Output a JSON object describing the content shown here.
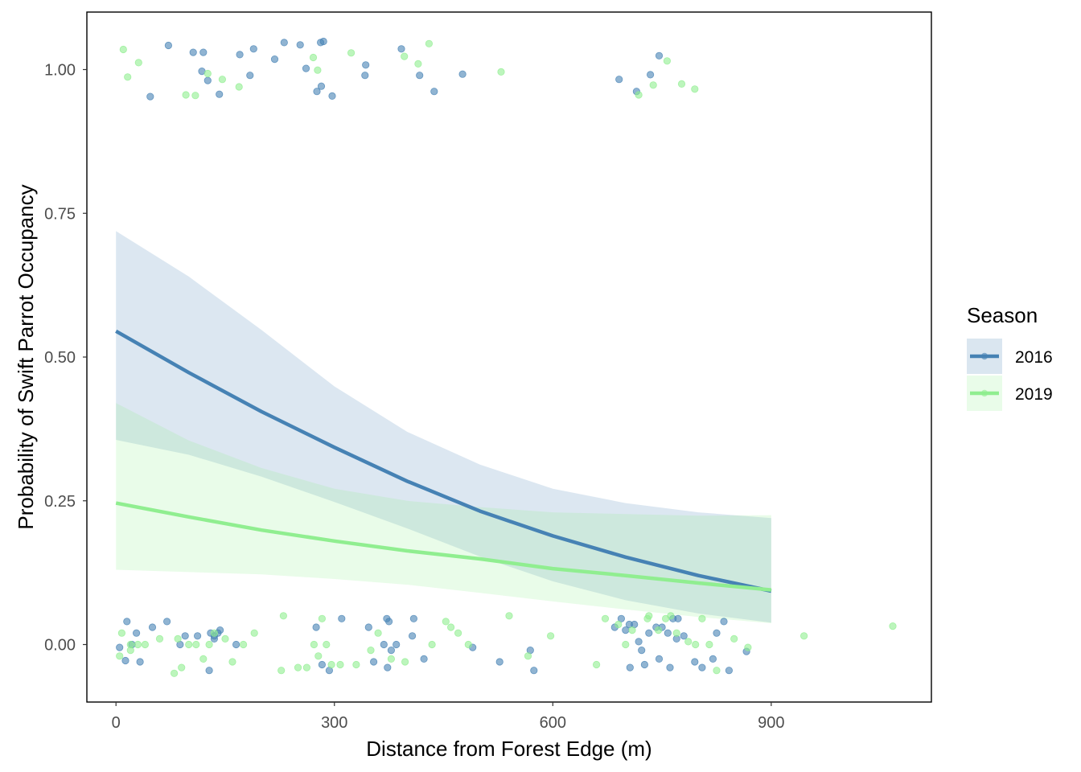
{
  "chart_data": {
    "type": "scatter",
    "xlabel": "Distance from Forest Edge (m)",
    "ylabel": "Probability of Swift Parrot Occupancy",
    "xlim": [
      -40,
      1120
    ],
    "ylim": [
      -0.1,
      1.1
    ],
    "x_ticks": [
      0,
      300,
      600,
      900
    ],
    "x_tick_labels": [
      "0",
      "300",
      "600",
      "900"
    ],
    "y_ticks": [
      0,
      0.25,
      0.5,
      0.75,
      1
    ],
    "y_tick_labels": [
      "0.00",
      "0.25",
      "0.50",
      "0.75",
      "1.00"
    ],
    "grid": false,
    "legend": {
      "title": "Season",
      "position": "right"
    },
    "series": [
      {
        "name": "2016",
        "color": "#4682b4",
        "fit": {
          "x": [
            0,
            100,
            200,
            300,
            400,
            500,
            600,
            700,
            800,
            900
          ],
          "y": [
            0.545,
            0.473,
            0.405,
            0.343,
            0.284,
            0.232,
            0.189,
            0.152,
            0.12,
            0.093
          ],
          "lower": [
            0.356,
            0.33,
            0.292,
            0.248,
            0.202,
            0.153,
            0.11,
            0.077,
            0.054,
            0.038
          ],
          "upper": [
            0.719,
            0.64,
            0.547,
            0.449,
            0.37,
            0.313,
            0.271,
            0.246,
            0.23,
            0.22
          ]
        },
        "points": [
          [
            72,
            1.042
          ],
          [
            106,
            1.03
          ],
          [
            120,
            1.03
          ],
          [
            170,
            1.026
          ],
          [
            189,
            1.036
          ],
          [
            218,
            1.018
          ],
          [
            231,
            1.047
          ],
          [
            253,
            1.043
          ],
          [
            281,
            1.047
          ],
          [
            285,
            1.049
          ],
          [
            343,
            1.008
          ],
          [
            392,
            1.036
          ],
          [
            47,
            0.953
          ],
          [
            118,
            0.997
          ],
          [
            126,
            0.981
          ],
          [
            142,
            0.957
          ],
          [
            184,
            0.99
          ],
          [
            261,
            1.002
          ],
          [
            276,
            0.962
          ],
          [
            282,
            0.971
          ],
          [
            297,
            0.954
          ],
          [
            342,
            0.99
          ],
          [
            417,
            0.99
          ],
          [
            437,
            0.962
          ],
          [
            476,
            0.992
          ],
          [
            691,
            0.983
          ],
          [
            715,
            0.962
          ],
          [
            734,
            0.991
          ],
          [
            746,
            1.024
          ],
          [
            15,
            0.04
          ],
          [
            28,
            0.02
          ],
          [
            22,
            0.0
          ],
          [
            5,
            -0.005
          ],
          [
            13,
            -0.028
          ],
          [
            33,
            -0.03
          ],
          [
            50,
            0.03
          ],
          [
            70,
            0.04
          ],
          [
            88,
            0.0
          ],
          [
            95,
            0.015
          ],
          [
            112,
            0.015
          ],
          [
            135,
            0.01
          ],
          [
            140,
            0.02
          ],
          [
            143,
            0.025
          ],
          [
            135,
            0.015
          ],
          [
            130,
            0.02
          ],
          [
            128,
            -0.045
          ],
          [
            165,
            0.0
          ],
          [
            275,
            0.03
          ],
          [
            310,
            0.045
          ],
          [
            283,
            -0.035
          ],
          [
            293,
            -0.045
          ],
          [
            347,
            0.03
          ],
          [
            368,
            0.0
          ],
          [
            378,
            -0.01
          ],
          [
            385,
            0.0
          ],
          [
            372,
            0.045
          ],
          [
            375,
            0.04
          ],
          [
            409,
            0.045
          ],
          [
            407,
            0.015
          ],
          [
            423,
            -0.025
          ],
          [
            490,
            -0.005
          ],
          [
            527,
            -0.03
          ],
          [
            569,
            -0.01
          ],
          [
            574,
            -0.045
          ],
          [
            354,
            -0.03
          ],
          [
            373,
            -0.04
          ],
          [
            685,
            0.03
          ],
          [
            694,
            0.045
          ],
          [
            700,
            0.025
          ],
          [
            705,
            0.035
          ],
          [
            712,
            0.035
          ],
          [
            718,
            0.005
          ],
          [
            722,
            -0.01
          ],
          [
            732,
            0.02
          ],
          [
            742,
            0.03
          ],
          [
            750,
            0.03
          ],
          [
            758,
            0.02
          ],
          [
            765,
            0.045
          ],
          [
            770,
            0.01
          ],
          [
            780,
            0.015
          ],
          [
            795,
            -0.03
          ],
          [
            805,
            -0.04
          ],
          [
            820,
            -0.025
          ],
          [
            825,
            0.02
          ],
          [
            835,
            0.04
          ],
          [
            842,
            -0.045
          ],
          [
            866,
            -0.012
          ],
          [
            772,
            0.045
          ],
          [
            746,
            -0.025
          ],
          [
            726,
            -0.035
          ],
          [
            761,
            -0.04
          ],
          [
            706,
            -0.04
          ]
        ]
      },
      {
        "name": "2019",
        "color": "#90ee90",
        "fit": {
          "x": [
            0,
            100,
            200,
            300,
            400,
            500,
            600,
            700,
            800,
            900
          ],
          "y": [
            0.246,
            0.222,
            0.199,
            0.18,
            0.163,
            0.149,
            0.132,
            0.12,
            0.107,
            0.095
          ],
          "lower": [
            0.13,
            0.126,
            0.122,
            0.114,
            0.104,
            0.09,
            0.075,
            0.061,
            0.048,
            0.037
          ],
          "upper": [
            0.42,
            0.355,
            0.307,
            0.271,
            0.25,
            0.239,
            0.23,
            0.227,
            0.224,
            0.225
          ]
        },
        "points": [
          [
            10,
            1.035
          ],
          [
            31,
            1.012
          ],
          [
            16,
            0.987
          ],
          [
            96,
            0.956
          ],
          [
            109,
            0.955
          ],
          [
            126,
            0.993
          ],
          [
            146,
            0.983
          ],
          [
            169,
            0.97
          ],
          [
            271,
            1.021
          ],
          [
            277,
            0.999
          ],
          [
            323,
            1.029
          ],
          [
            396,
            1.023
          ],
          [
            415,
            1.01
          ],
          [
            430,
            1.045
          ],
          [
            529,
            0.996
          ],
          [
            718,
            0.956
          ],
          [
            738,
            0.973
          ],
          [
            757,
            1.015
          ],
          [
            777,
            0.975
          ],
          [
            795,
            0.966
          ],
          [
            5,
            -0.02
          ],
          [
            8,
            0.02
          ],
          [
            20,
            -0.01
          ],
          [
            20,
            0.0
          ],
          [
            30,
            0.0
          ],
          [
            40,
            0.0
          ],
          [
            60,
            0.01
          ],
          [
            80,
            -0.05
          ],
          [
            85,
            0.01
          ],
          [
            90,
            -0.04
          ],
          [
            100,
            0.0
          ],
          [
            110,
            0.0
          ],
          [
            120,
            -0.025
          ],
          [
            128,
            0.0
          ],
          [
            135,
            0.02
          ],
          [
            150,
            0.01
          ],
          [
            160,
            -0.03
          ],
          [
            175,
            0.0
          ],
          [
            190,
            0.02
          ],
          [
            230,
            0.05
          ],
          [
            227,
            -0.045
          ],
          [
            250,
            -0.04
          ],
          [
            262,
            -0.04
          ],
          [
            272,
            0.0
          ],
          [
            278,
            -0.02
          ],
          [
            283,
            0.045
          ],
          [
            289,
            0.0
          ],
          [
            296,
            -0.035
          ],
          [
            308,
            -0.035
          ],
          [
            330,
            -0.035
          ],
          [
            350,
            -0.01
          ],
          [
            360,
            0.02
          ],
          [
            378,
            -0.025
          ],
          [
            397,
            -0.03
          ],
          [
            434,
            0.0
          ],
          [
            453,
            0.04
          ],
          [
            460,
            0.03
          ],
          [
            470,
            0.02
          ],
          [
            484,
            0.0
          ],
          [
            540,
            0.05
          ],
          [
            566,
            -0.02
          ],
          [
            597,
            0.015
          ],
          [
            660,
            -0.035
          ],
          [
            672,
            0.045
          ],
          [
            690,
            0.035
          ],
          [
            700,
            0.0
          ],
          [
            709,
            0.025
          ],
          [
            730,
            0.045
          ],
          [
            732,
            0.05
          ],
          [
            745,
            0.025
          ],
          [
            755,
            0.045
          ],
          [
            762,
            0.05
          ],
          [
            770,
            0.02
          ],
          [
            786,
            0.005
          ],
          [
            796,
            0.0
          ],
          [
            805,
            0.045
          ],
          [
            815,
            0.0
          ],
          [
            825,
            -0.045
          ],
          [
            849,
            0.01
          ],
          [
            868,
            -0.005
          ],
          [
            945,
            0.015
          ],
          [
            1067,
            0.032
          ]
        ]
      }
    ]
  }
}
